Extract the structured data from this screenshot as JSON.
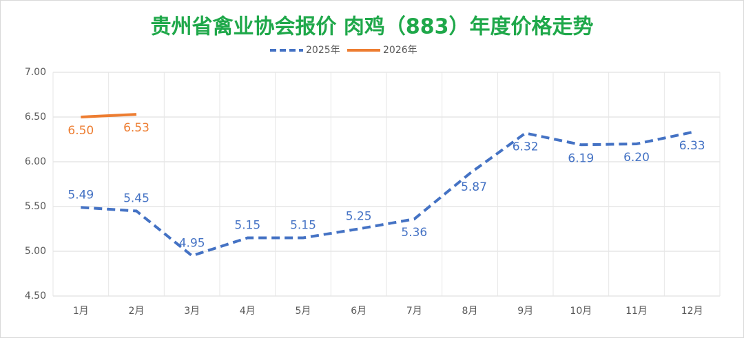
{
  "chart_data": {
    "type": "line",
    "title": "贵州省禽业协会报价 肉鸡（883）年度价格走势",
    "categories": [
      "1月",
      "2月",
      "3月",
      "4月",
      "5月",
      "6月",
      "7月",
      "8月",
      "9月",
      "10月",
      "11月",
      "12月"
    ],
    "series": [
      {
        "name": "2025年",
        "color": "#4472c4",
        "dashed": true,
        "values": [
          5.49,
          5.45,
          4.95,
          5.15,
          5.15,
          5.25,
          5.36,
          5.87,
          6.32,
          6.19,
          6.2,
          6.33
        ],
        "value_labels": [
          "5.49",
          "5.45",
          "4.95",
          "5.15",
          "5.15",
          "5.25",
          "5.36",
          "5.87",
          "6.32",
          "6.19",
          "6.20",
          "6.33"
        ]
      },
      {
        "name": "2026年",
        "color": "#ed7d31",
        "dashed": false,
        "values": [
          6.5,
          6.53,
          null,
          null,
          null,
          null,
          null,
          null,
          null,
          null,
          null,
          null
        ],
        "value_labels": [
          "6.50",
          "6.53",
          null,
          null,
          null,
          null,
          null,
          null,
          null,
          null,
          null,
          null
        ]
      }
    ],
    "ylim": [
      4.5,
      7.0
    ],
    "yticks": [
      {
        "value": 4.5,
        "label": "4.50"
      },
      {
        "value": 5.0,
        "label": "5.00"
      },
      {
        "value": 5.5,
        "label": "5.50"
      },
      {
        "value": 6.0,
        "label": "6.00"
      },
      {
        "value": 6.5,
        "label": "6.50"
      },
      {
        "value": 7.0,
        "label": "7.00"
      }
    ],
    "grid": true,
    "legend": "top"
  }
}
